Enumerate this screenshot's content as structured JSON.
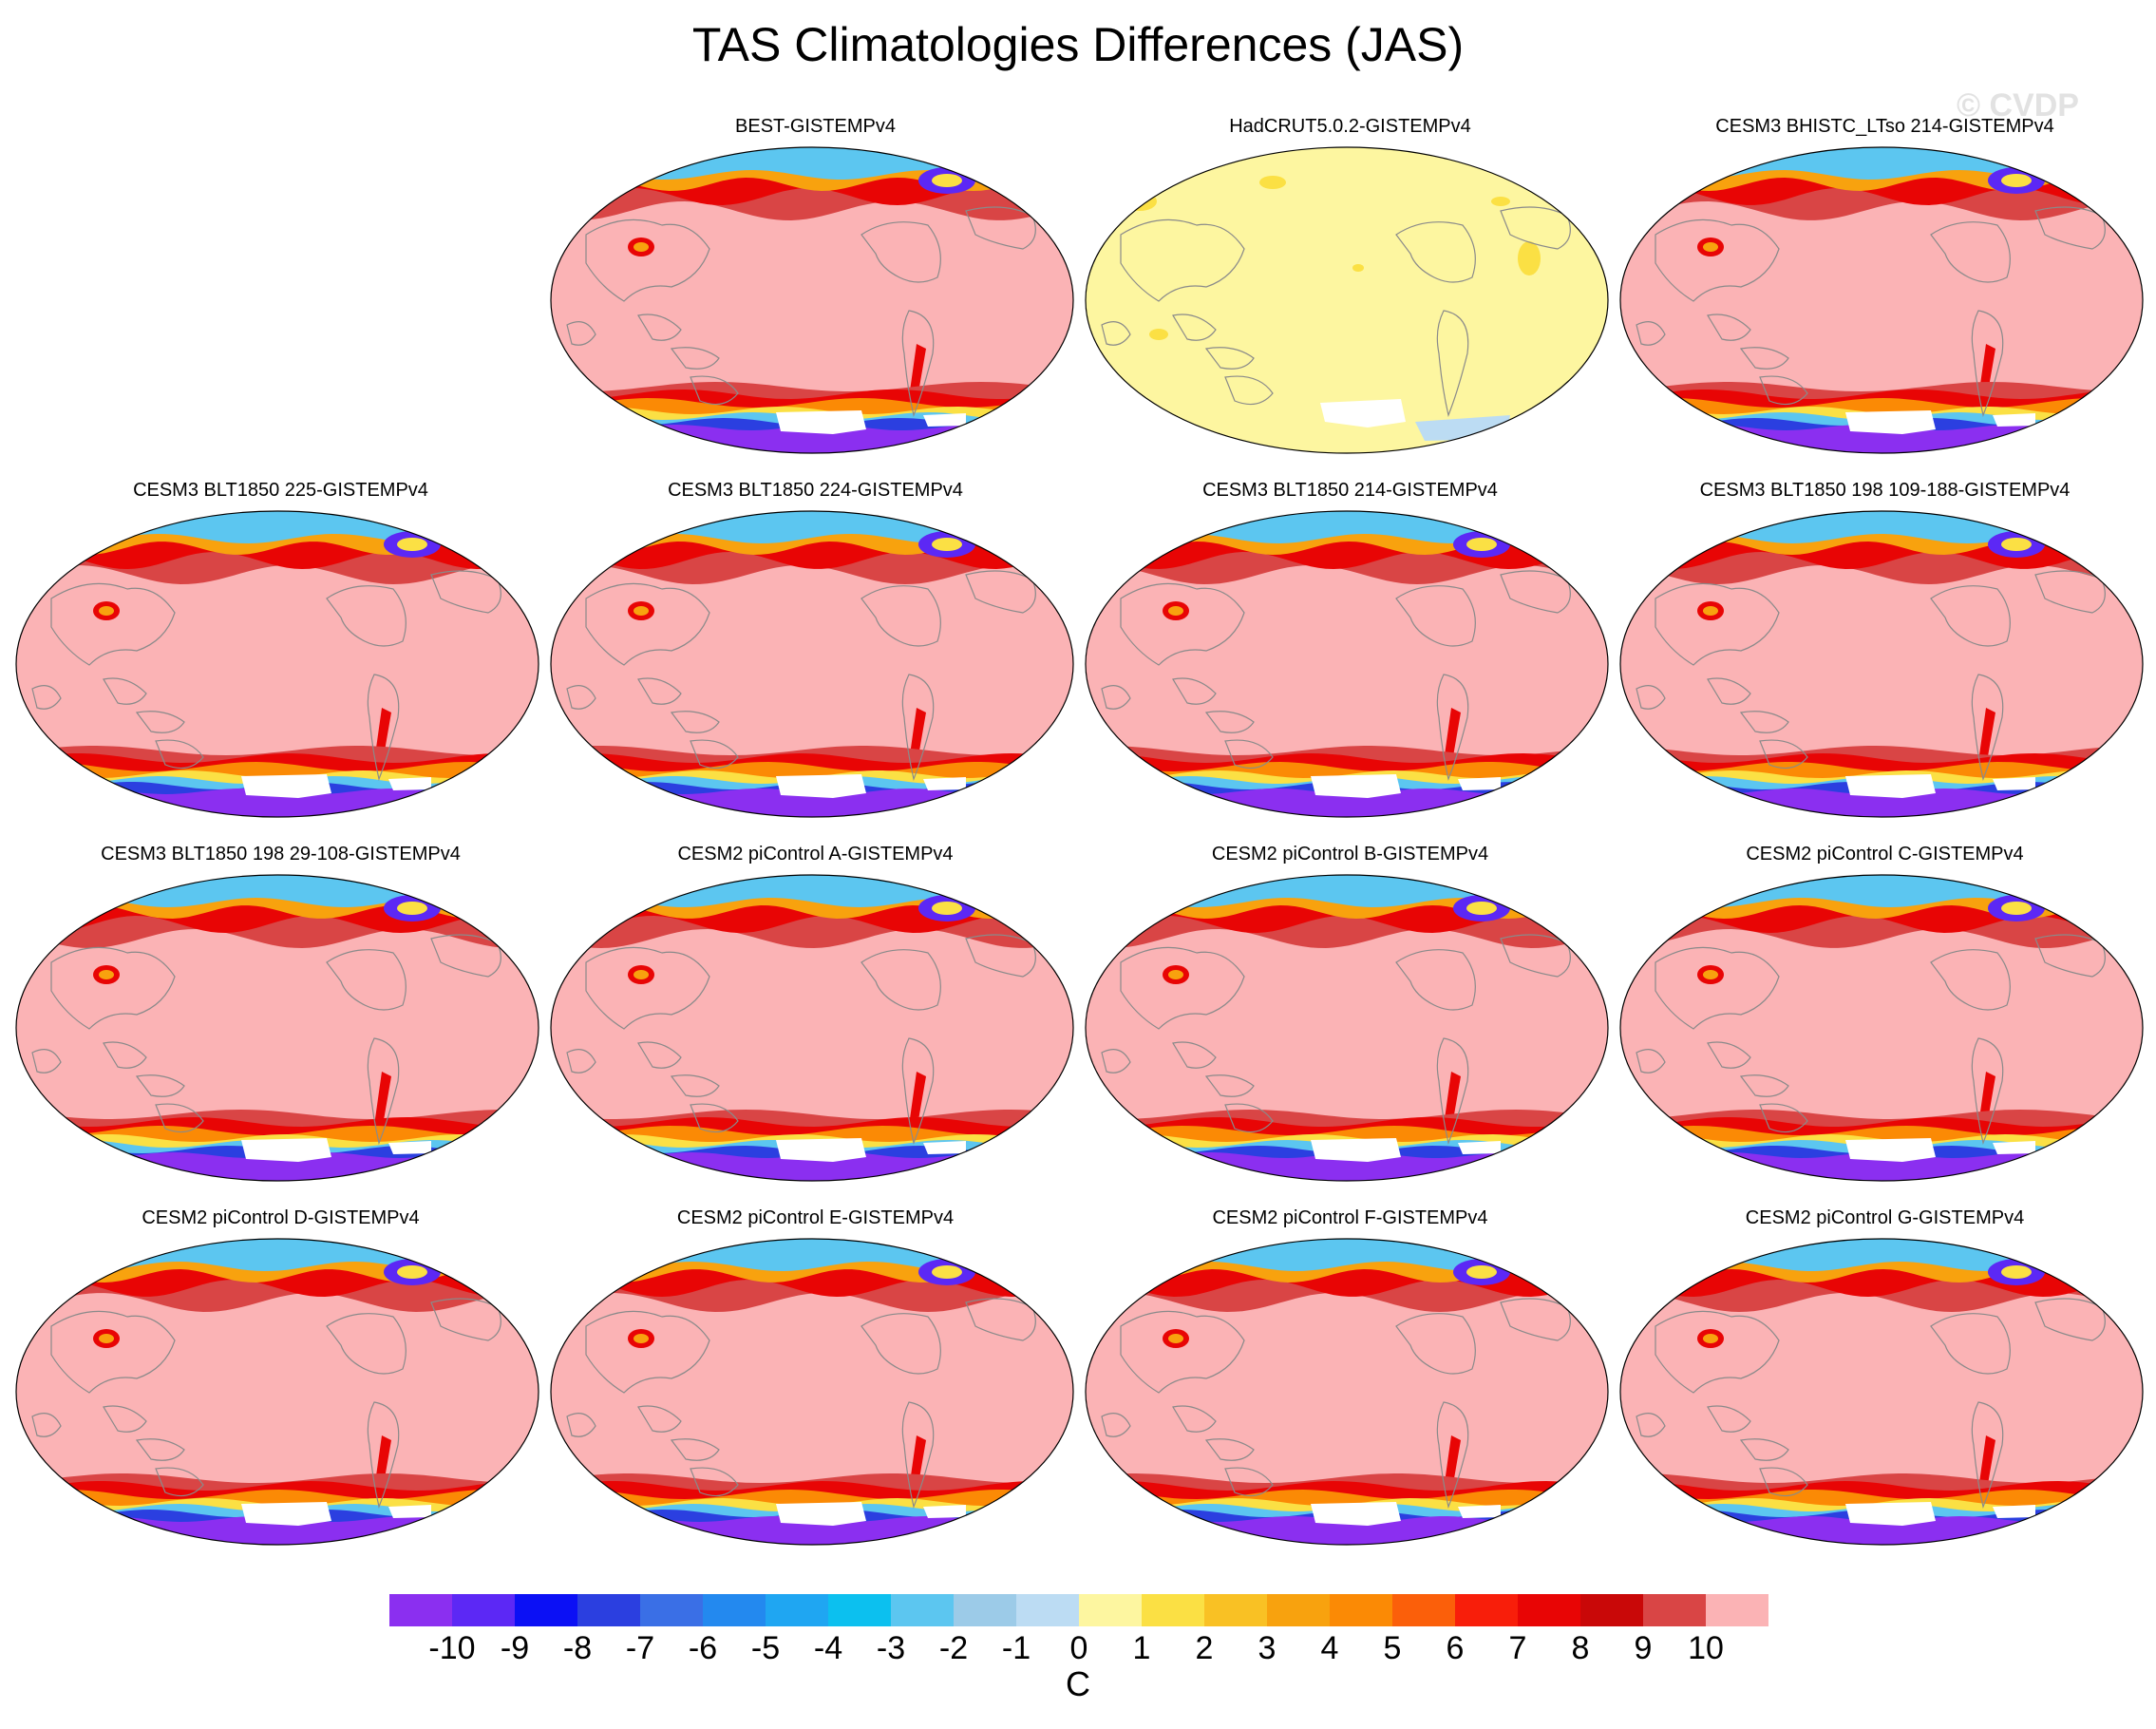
{
  "title": "TAS Climatologies Differences (JAS)",
  "watermark": "© CVDP",
  "panels": [
    {
      "title": "",
      "empty": true
    },
    {
      "title": "BEST-GISTEMPv4",
      "style": "anomaly"
    },
    {
      "title": "HadCRUT5.0.2-GISTEMPv4",
      "style": "observed"
    },
    {
      "title": "CESM3 BHISTC_LTso 214-GISTEMPv4",
      "style": "anomaly"
    },
    {
      "title": "CESM3 BLT1850 225-GISTEMPv4",
      "style": "anomaly"
    },
    {
      "title": "CESM3 BLT1850 224-GISTEMPv4",
      "style": "anomaly"
    },
    {
      "title": "CESM3 BLT1850 214-GISTEMPv4",
      "style": "anomaly"
    },
    {
      "title": "CESM3 BLT1850 198 109-188-GISTEMPv4",
      "style": "anomaly"
    },
    {
      "title": "CESM3 BLT1850 198 29-108-GISTEMPv4",
      "style": "anomaly"
    },
    {
      "title": "CESM2 piControl A-GISTEMPv4",
      "style": "anomaly"
    },
    {
      "title": "CESM2 piControl B-GISTEMPv4",
      "style": "anomaly"
    },
    {
      "title": "CESM2 piControl C-GISTEMPv4",
      "style": "anomaly"
    },
    {
      "title": "CESM2 piControl D-GISTEMPv4",
      "style": "anomaly"
    },
    {
      "title": "CESM2 piControl E-GISTEMPv4",
      "style": "anomaly"
    },
    {
      "title": "CESM2 piControl F-GISTEMPv4",
      "style": "anomaly"
    },
    {
      "title": "CESM2 piControl G-GISTEMPv4",
      "style": "anomaly"
    }
  ],
  "colorbar": {
    "labels": [
      "-10",
      "-9",
      "-8",
      "-7",
      "-6",
      "-5",
      "-4",
      "-3",
      "-2",
      "-1",
      "0",
      "1",
      "2",
      "3",
      "4",
      "5",
      "6",
      "7",
      "8",
      "9",
      "10"
    ],
    "colors": [
      "#8b2ff0",
      "#5c28f5",
      "#0b10f5",
      "#2b3fe0",
      "#3a6fe6",
      "#2389ef",
      "#1fa6f2",
      "#0cc0ef",
      "#5cc6f0",
      "#9ccbe8",
      "#bcdcf3",
      "#fdf6a0",
      "#fbe044",
      "#f9c124",
      "#f8a20e",
      "#fb8a05",
      "#fb5f0a",
      "#f81e0a",
      "#e80505",
      "#c90808",
      "#d94545",
      "#fbb3b5"
    ],
    "unit": "C"
  }
}
